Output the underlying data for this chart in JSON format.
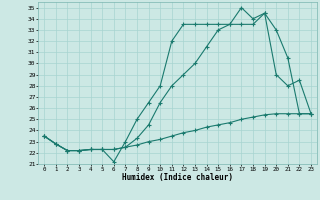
{
  "xlabel": "Humidex (Indice chaleur)",
  "bg_color": "#cce8e4",
  "grid_color": "#a8d4d0",
  "line_color": "#1a7a6e",
  "xlim": [
    -0.5,
    23.5
  ],
  "ylim": [
    21,
    35.5
  ],
  "xticks": [
    0,
    1,
    2,
    3,
    4,
    5,
    6,
    7,
    8,
    9,
    10,
    11,
    12,
    13,
    14,
    15,
    16,
    17,
    18,
    19,
    20,
    21,
    22,
    23
  ],
  "yticks": [
    21,
    22,
    23,
    24,
    25,
    26,
    27,
    28,
    29,
    30,
    31,
    32,
    33,
    34,
    35
  ],
  "line1_x": [
    0,
    1,
    2,
    3,
    4,
    5,
    6,
    7,
    8,
    9,
    10,
    11,
    12,
    13,
    14,
    15,
    16,
    17,
    18,
    19,
    20,
    21,
    22,
    23
  ],
  "line1_y": [
    23.5,
    22.8,
    22.2,
    22.2,
    22.3,
    22.3,
    22.3,
    22.5,
    23.3,
    24.5,
    26.5,
    28.0,
    29.0,
    30.0,
    31.5,
    33.0,
    33.5,
    33.5,
    33.5,
    34.5,
    33.0,
    30.5,
    25.5,
    25.5
  ],
  "line2_x": [
    0,
    1,
    2,
    3,
    4,
    5,
    6,
    7,
    8,
    9,
    10,
    11,
    12,
    13,
    14,
    15,
    16,
    17,
    18,
    19,
    20,
    21,
    22,
    23
  ],
  "line2_y": [
    23.5,
    22.8,
    22.2,
    22.2,
    22.3,
    22.3,
    21.2,
    23.0,
    25.0,
    26.5,
    28.0,
    32.0,
    33.5,
    33.5,
    33.5,
    33.5,
    33.5,
    35.0,
    34.0,
    34.5,
    29.0,
    28.0,
    28.5,
    25.5
  ],
  "line3_x": [
    0,
    1,
    2,
    3,
    4,
    5,
    6,
    7,
    8,
    9,
    10,
    11,
    12,
    13,
    14,
    15,
    16,
    17,
    18,
    19,
    20,
    21,
    22,
    23
  ],
  "line3_y": [
    23.5,
    22.8,
    22.2,
    22.2,
    22.3,
    22.3,
    22.3,
    22.5,
    22.7,
    23.0,
    23.2,
    23.5,
    23.8,
    24.0,
    24.3,
    24.5,
    24.7,
    25.0,
    25.2,
    25.4,
    25.5,
    25.5,
    25.5,
    25.5
  ]
}
